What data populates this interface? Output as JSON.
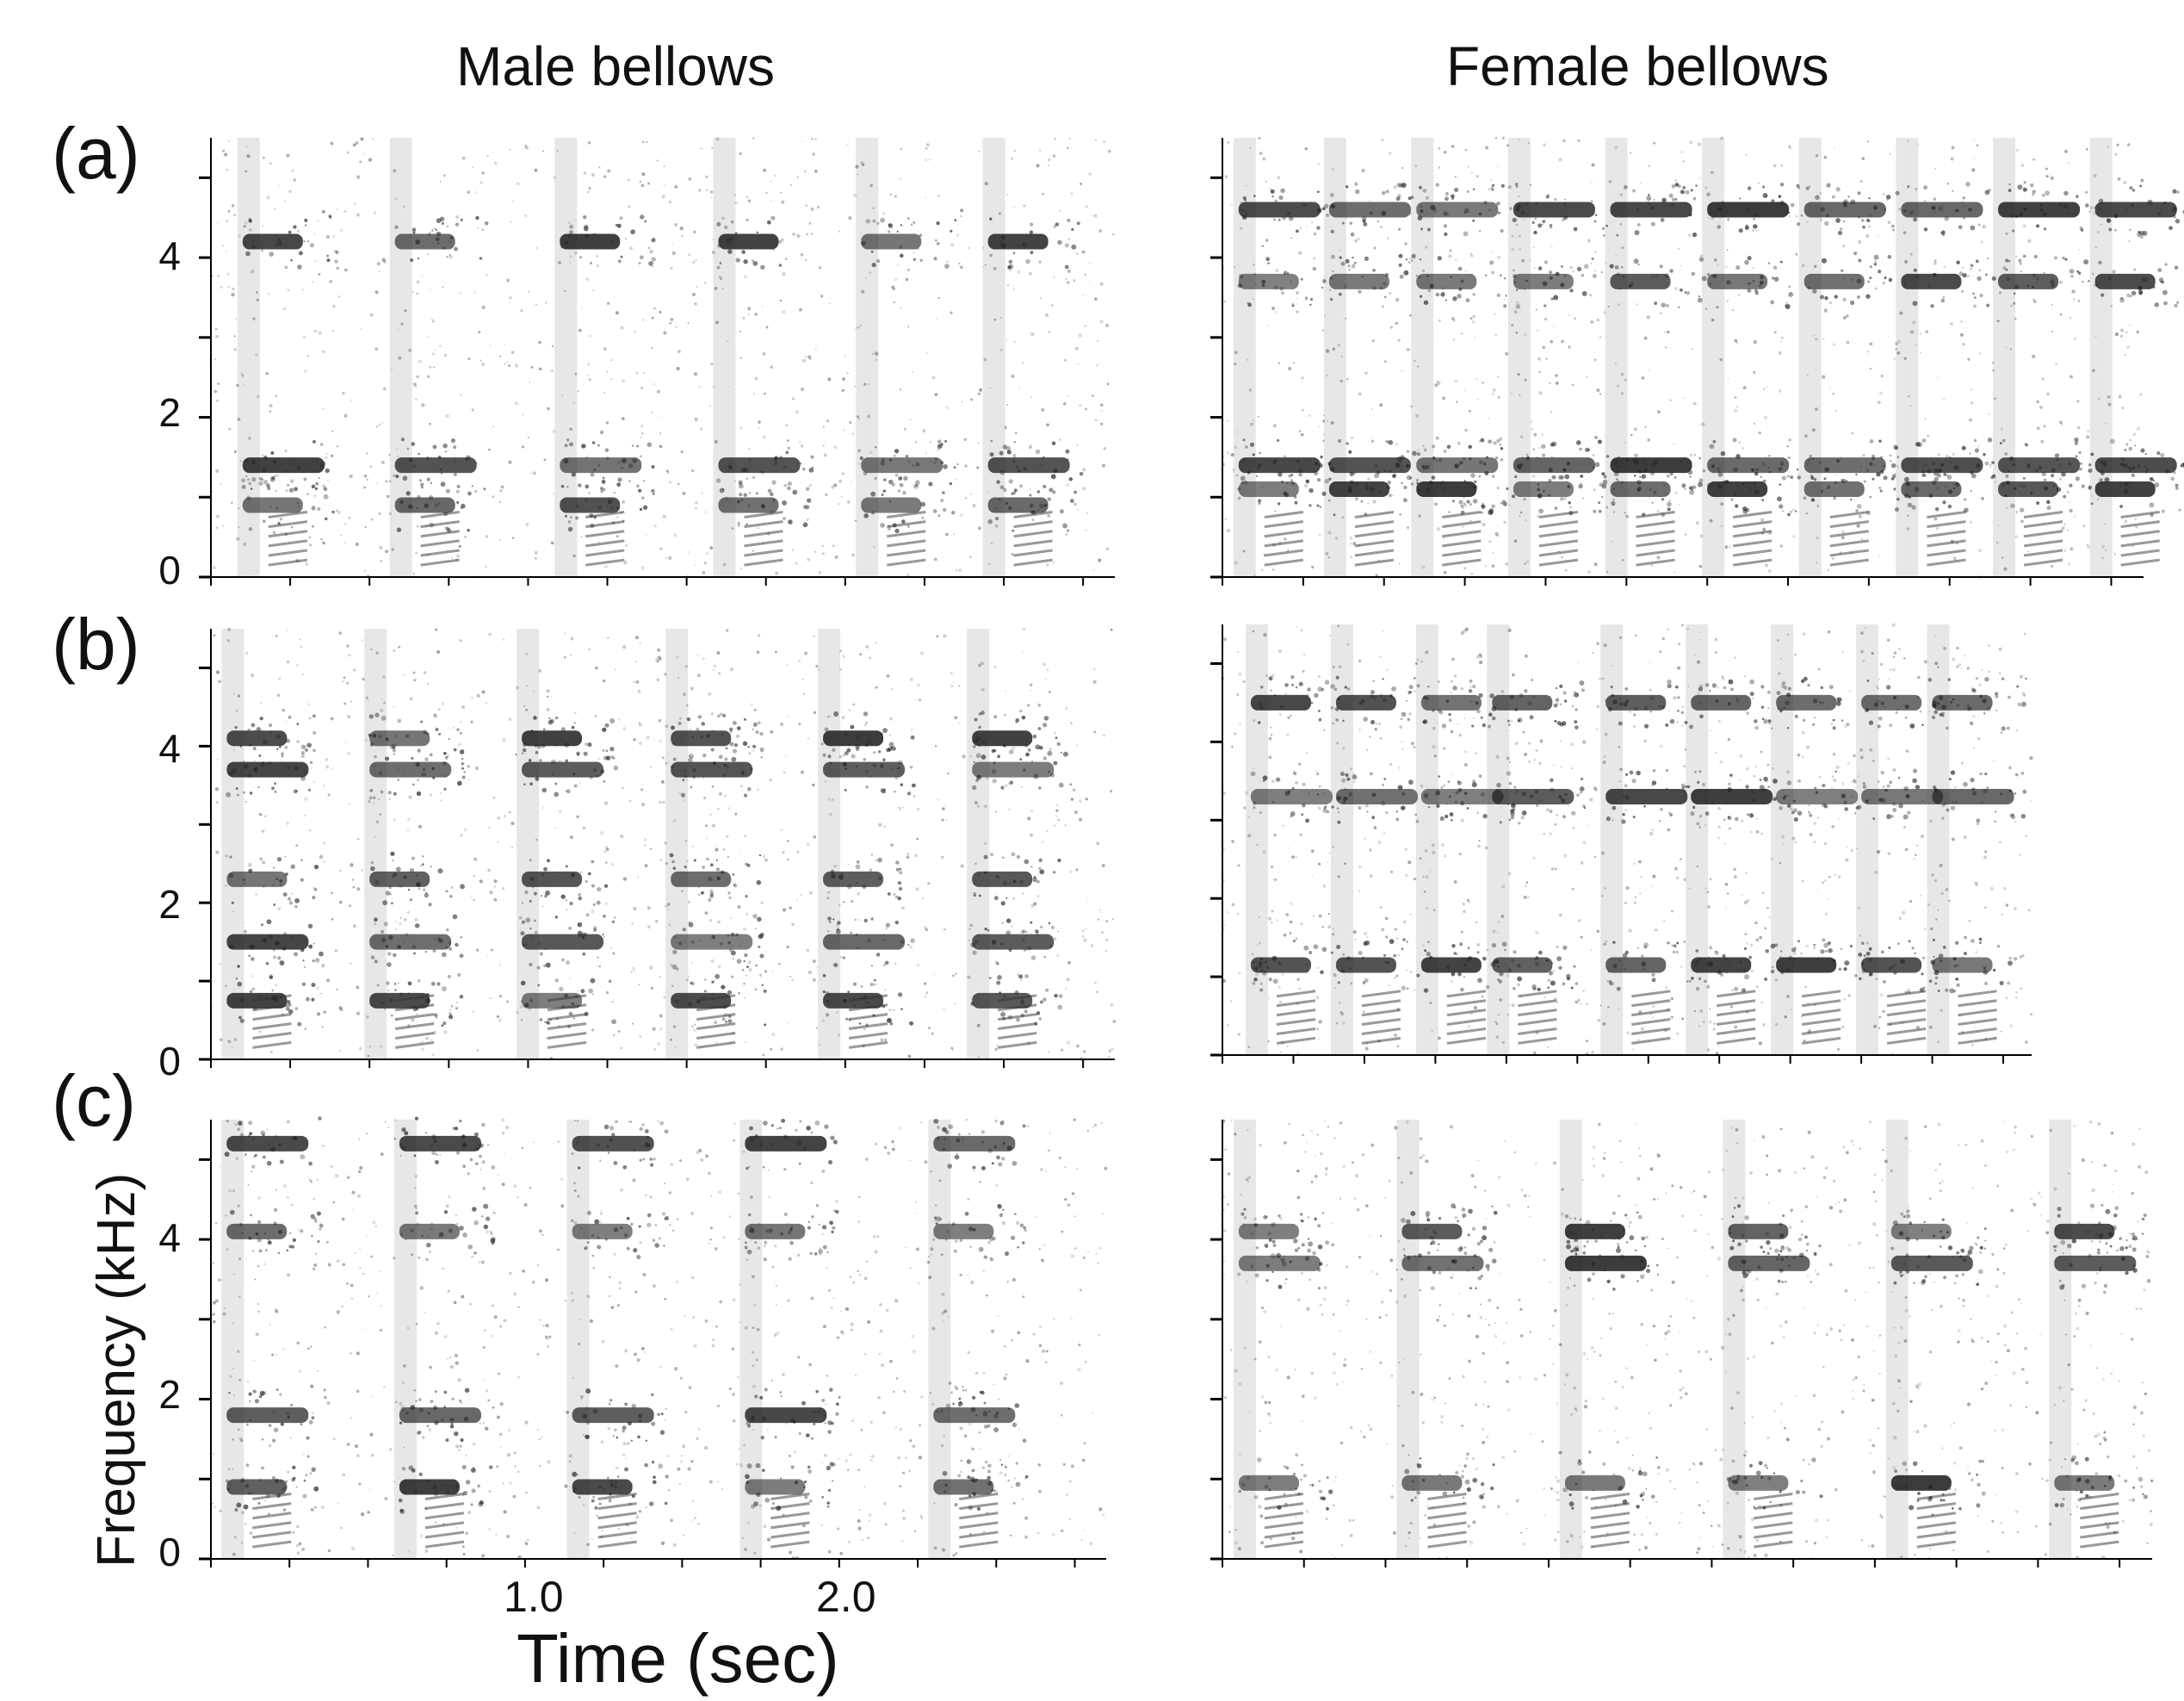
{
  "column_titles": [
    "Male bellows",
    "Female bellows"
  ],
  "row_labels": [
    "(a)",
    "(b)",
    "(c)"
  ],
  "y_axis": {
    "label": "Frequency (kHz)",
    "ticks": [
      "0",
      "2",
      "4"
    ]
  },
  "x_axis": {
    "label": "Time (sec)",
    "ticks": [
      "1.0",
      "2.0"
    ]
  },
  "chart_data": [
    {
      "type": "heatmap",
      "panel": "(a) male",
      "xlim": [
        0,
        2.85
      ],
      "ylim": [
        0,
        5.5
      ],
      "bands_khz": [
        0.9,
        1.4,
        4.2
      ],
      "call_onsets_sec": [
        0.1,
        0.58,
        1.1,
        1.6,
        2.05,
        2.45
      ]
    },
    {
      "type": "heatmap",
      "panel": "(a) female",
      "xlim": [
        0,
        2.85
      ],
      "ylim": [
        0,
        5.5
      ],
      "bands_khz": [
        1.1,
        1.4,
        3.7,
        4.6
      ],
      "call_onsets_sec": [
        0.05,
        0.33,
        0.6,
        0.9,
        1.2,
        1.5,
        1.8,
        2.1,
        2.4,
        2.7
      ]
    },
    {
      "type": "heatmap",
      "panel": "(b) male",
      "xlim": [
        0,
        2.85
      ],
      "ylim": [
        0,
        5.5
      ],
      "bands_khz": [
        0.75,
        1.5,
        2.3,
        3.7,
        4.1
      ],
      "call_onsets_sec": [
        0.05,
        0.5,
        0.98,
        1.45,
        1.93,
        2.4
      ]
    },
    {
      "type": "heatmap",
      "panel": "(b) female",
      "xlim": [
        0,
        2.85
      ],
      "ylim": [
        0,
        5.5
      ],
      "bands_khz": [
        1.15,
        3.3,
        4.5
      ],
      "call_onsets_sec": [
        0.1,
        0.4,
        0.7,
        0.95,
        1.35,
        1.65,
        1.95,
        2.25,
        2.5
      ]
    },
    {
      "type": "heatmap",
      "panel": "(c) male",
      "xlim": [
        0,
        2.85
      ],
      "ylim": [
        0,
        5.5
      ],
      "bands_khz": [
        0.9,
        1.8,
        4.1,
        5.2
      ],
      "call_onsets_sec": [
        0.05,
        0.6,
        1.15,
        1.7,
        2.3
      ]
    },
    {
      "type": "heatmap",
      "panel": "(c) female",
      "xlim": [
        0,
        2.85
      ],
      "ylim": [
        0,
        5.5
      ],
      "bands_khz": [
        0.95,
        3.7,
        4.1
      ],
      "call_onsets_sec": [
        0.05,
        0.55,
        1.05,
        1.55,
        2.05,
        2.55
      ]
    }
  ]
}
